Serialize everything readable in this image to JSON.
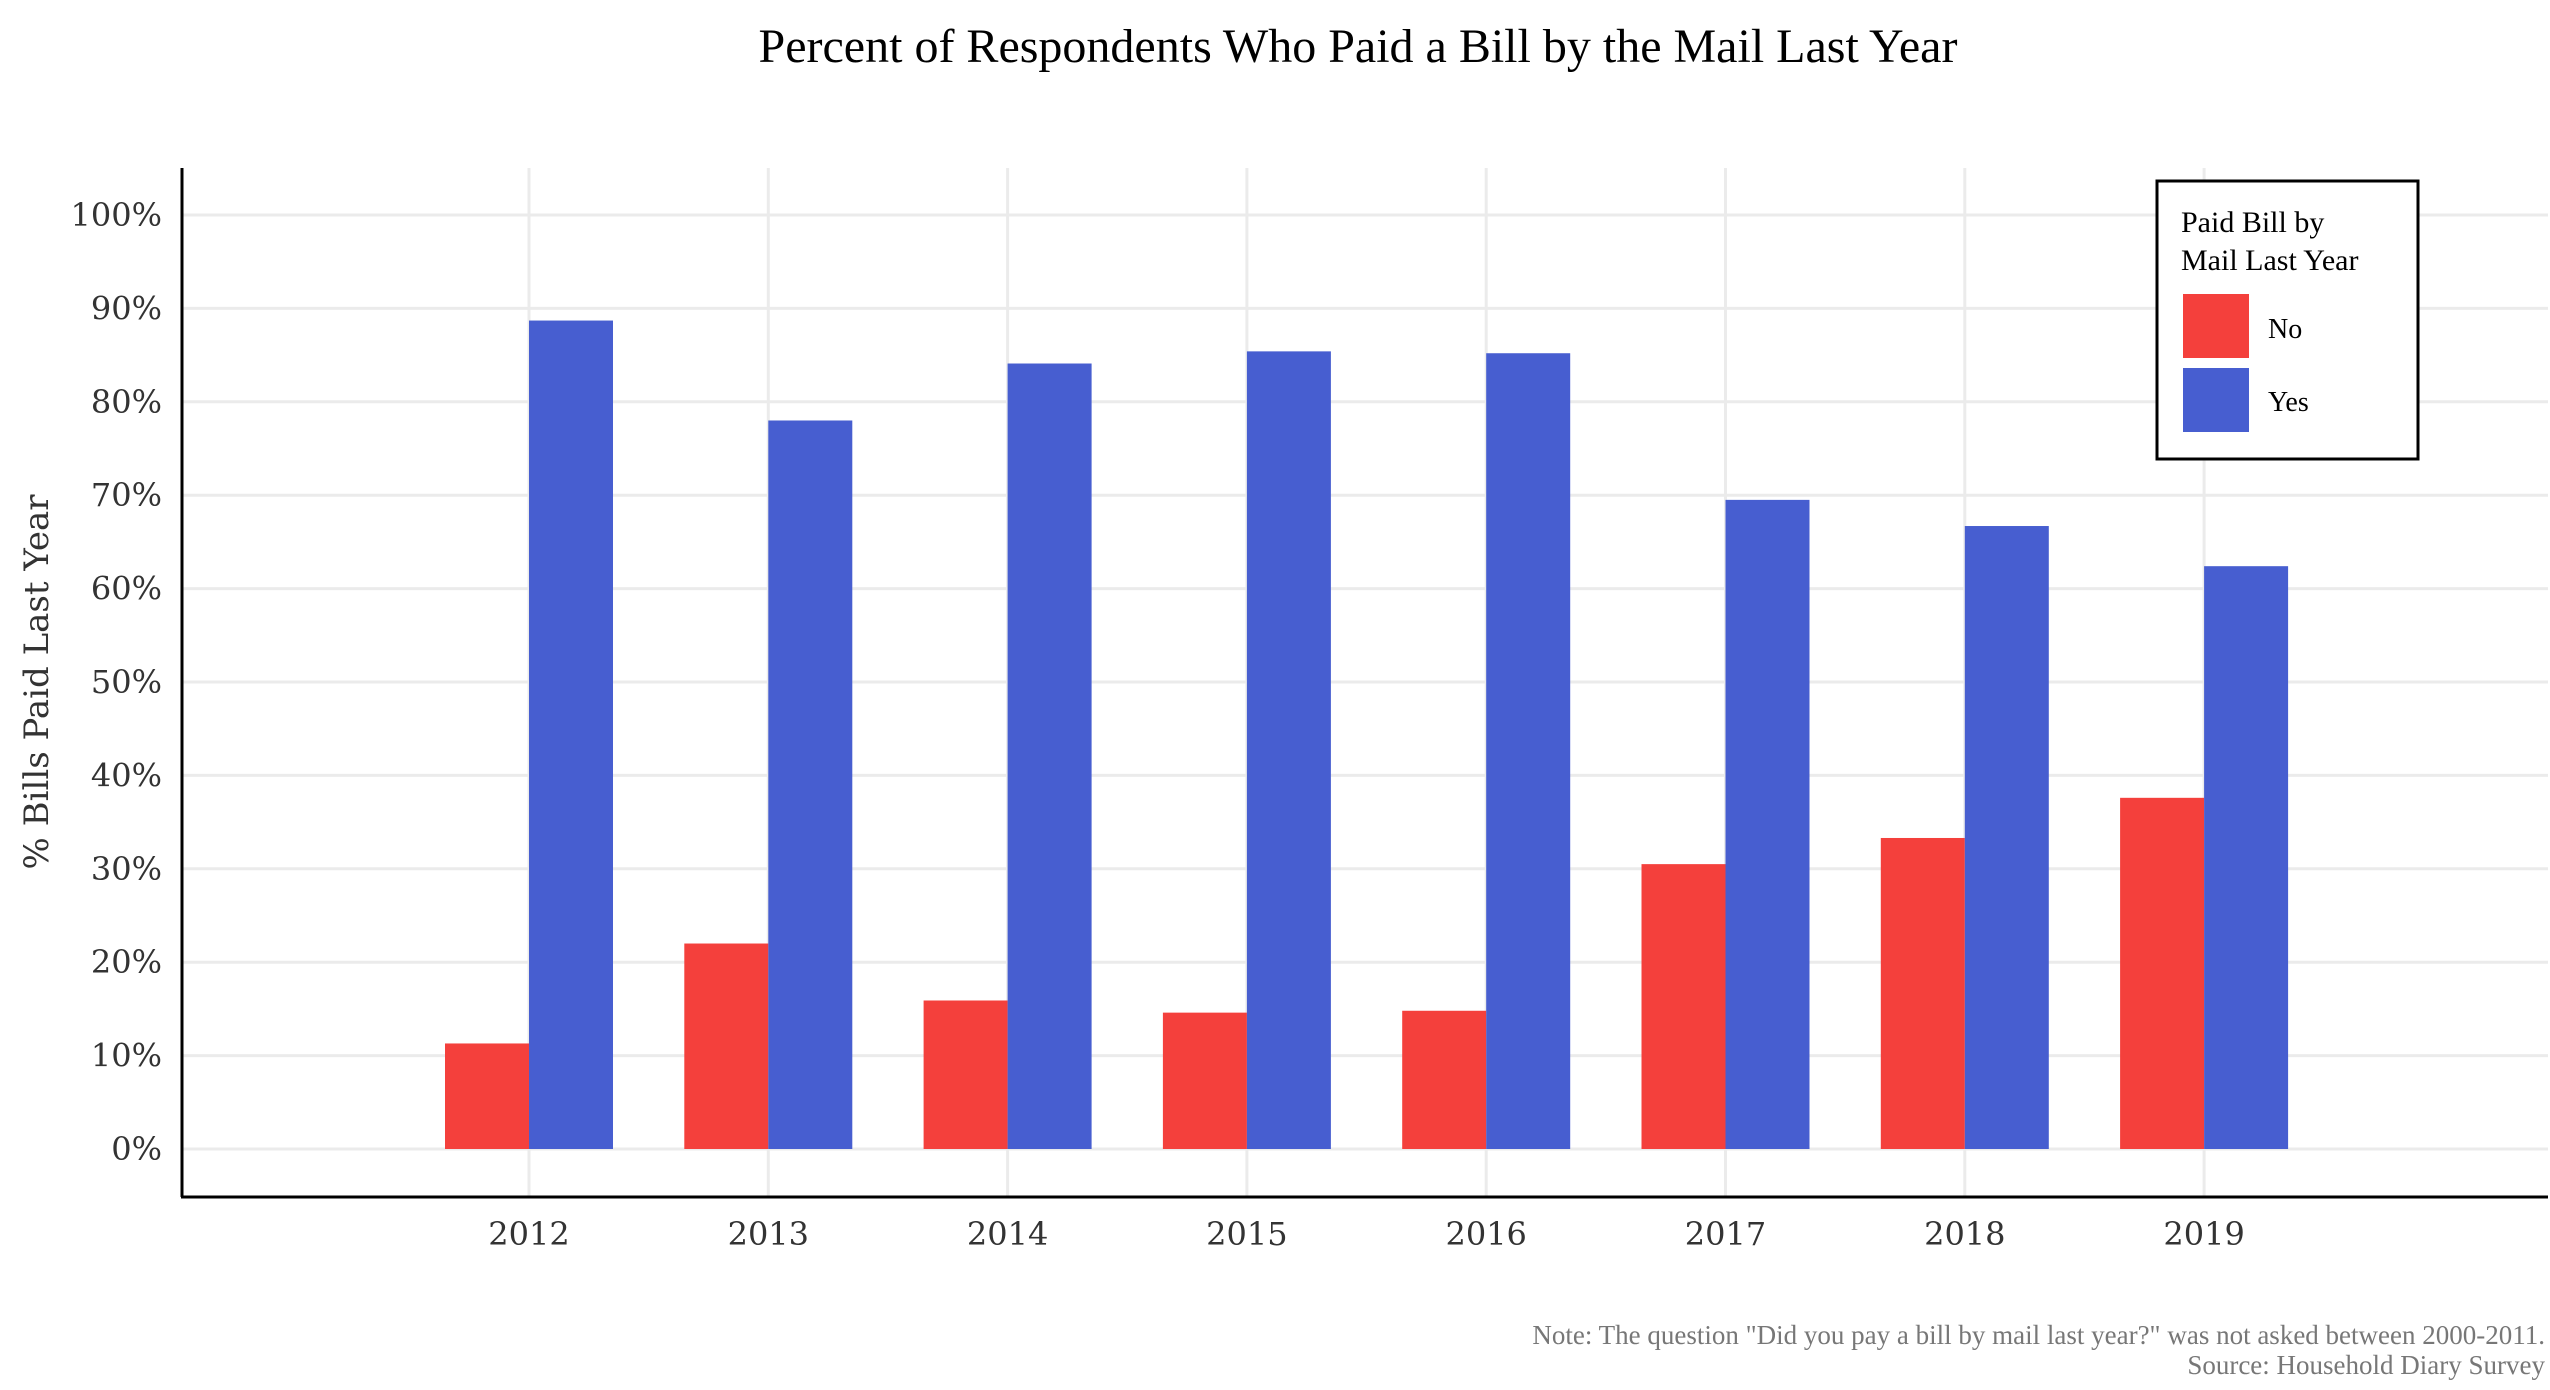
{
  "chart_data": {
    "type": "bar",
    "title": "Percent of Respondents Who Paid a Bill by the Mail Last Year",
    "xlabel": "",
    "ylabel": "% Bills Paid Last Year",
    "categories": [
      "2012",
      "2013",
      "2014",
      "2015",
      "2016",
      "2017",
      "2018",
      "2019"
    ],
    "series": [
      {
        "name": "No",
        "color": "#f4403c",
        "values": [
          11.3,
          22.0,
          15.9,
          14.6,
          14.8,
          30.5,
          33.3,
          37.6
        ]
      },
      {
        "name": "Yes",
        "color": "#475ed0",
        "values": [
          88.7,
          78.0,
          84.1,
          85.4,
          85.2,
          69.5,
          66.7,
          62.4
        ]
      }
    ],
    "ylim": [
      0,
      100
    ],
    "yticks": [
      0,
      10,
      20,
      30,
      40,
      50,
      60,
      70,
      80,
      90,
      100
    ],
    "ytick_labels": [
      "0%",
      "10%",
      "20%",
      "30%",
      "40%",
      "50%",
      "60%",
      "70%",
      "80%",
      "90%",
      "100%"
    ],
    "grid": true,
    "legend": {
      "title_line1": "Paid Bill by",
      "title_line2": "Mail Last Year",
      "placement": "top-right"
    },
    "note_line1": "Note: The question \"Did you pay a bill by mail last year?\" was not asked between 2000-2011.",
    "note_line2": "Source: Household Diary Survey"
  }
}
